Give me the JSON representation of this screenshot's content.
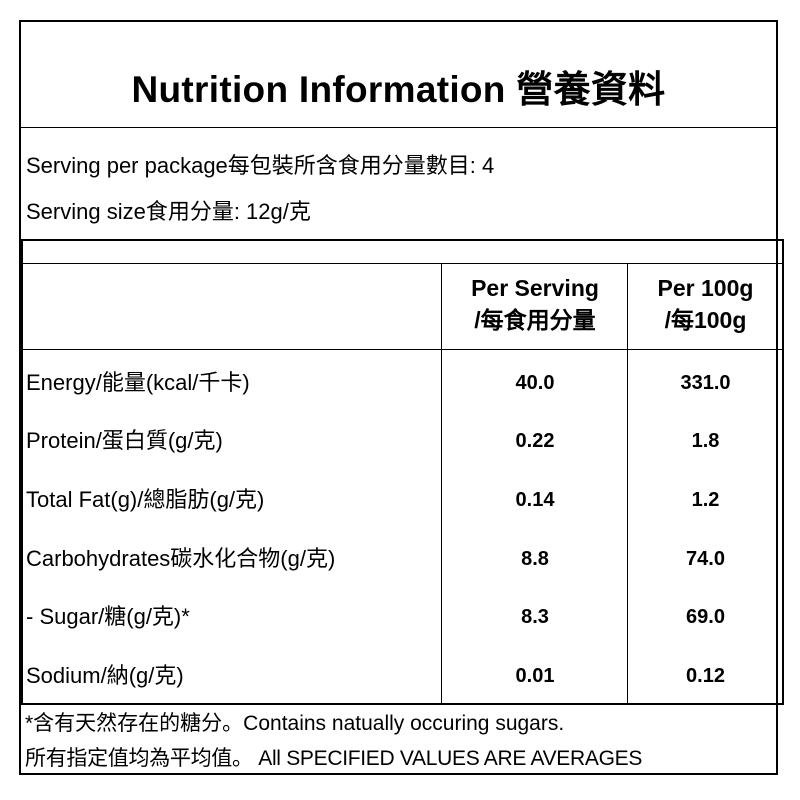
{
  "title": "Nutrition Information 營養資料",
  "serving_per_package": "Serving per package每包裝所含食用分量數目: 4",
  "serving_size": "Serving size食用分量: 12g/克",
  "columns": {
    "per_serving_line1": "Per Serving",
    "per_serving_line2": "/每食用分量",
    "per_100g_line1": "Per 100g",
    "per_100g_line2": "/每100g"
  },
  "rows": [
    {
      "label": "Energy/能量(kcal/千卡)",
      "per_serving": "40.0",
      "per_100g": "331.0"
    },
    {
      "label": "Protein/蛋白質(g/克)",
      "per_serving": "0.22",
      "per_100g": "1.8"
    },
    {
      "label": "Total Fat(g)/總脂肪(g/克)",
      "per_serving": "0.14",
      "per_100g": "1.2"
    },
    {
      "label": "Carbohydrates碳水化合物(g/克)",
      "per_serving": "8.8",
      "per_100g": "74.0"
    },
    {
      "label": "- Sugar/糖(g/克)*",
      "per_serving": "8.3",
      "per_100g": "69.0"
    },
    {
      "label": "Sodium/納(g/克)",
      "per_serving": "0.01",
      "per_100g": "0.12"
    }
  ],
  "footnote": "*含有天然存在的糖分。Contains natually occuring sugars.",
  "averages_note": "所有指定值均為平均值。 All SPECIFIED VALUES ARE AVERAGES"
}
